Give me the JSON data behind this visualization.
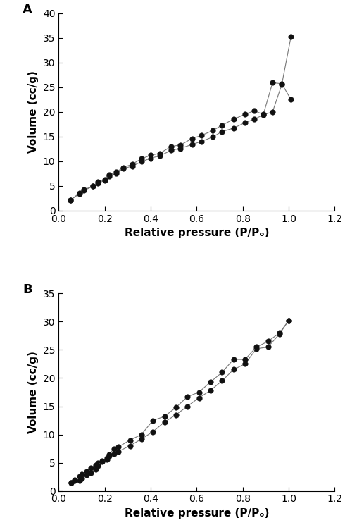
{
  "panel_A": {
    "label": "A",
    "adsorption_x": [
      0.05,
      0.09,
      0.11,
      0.15,
      0.17,
      0.2,
      0.22,
      0.25,
      0.28,
      0.32,
      0.36,
      0.4,
      0.44,
      0.49,
      0.53,
      0.58,
      0.62,
      0.67,
      0.71,
      0.76,
      0.81,
      0.85,
      0.89,
      0.93,
      0.97,
      1.01
    ],
    "adsorption_y": [
      2.1,
      3.4,
      4.1,
      4.9,
      5.5,
      6.1,
      7.0,
      7.5,
      8.5,
      9.0,
      9.9,
      10.6,
      11.1,
      12.2,
      12.6,
      13.4,
      14.0,
      14.9,
      16.0,
      16.7,
      17.8,
      18.5,
      19.4,
      20.0,
      25.5,
      35.2
    ],
    "desorption_x": [
      1.01,
      0.97,
      0.93,
      0.89,
      0.85,
      0.81,
      0.76,
      0.71,
      0.67,
      0.62,
      0.58,
      0.53,
      0.49,
      0.44,
      0.4,
      0.36,
      0.32,
      0.28,
      0.25,
      0.22,
      0.2,
      0.17,
      0.15,
      0.11,
      0.09,
      0.05
    ],
    "desorption_y": [
      22.5,
      25.7,
      25.9,
      19.5,
      20.2,
      19.5,
      18.5,
      17.3,
      16.2,
      15.2,
      14.6,
      13.3,
      13.0,
      11.6,
      11.2,
      10.5,
      9.4,
      8.7,
      7.8,
      7.2,
      6.3,
      5.8,
      5.0,
      4.2,
      3.5,
      2.1
    ],
    "xlim": [
      0.0,
      1.2
    ],
    "ylim": [
      0,
      40
    ],
    "xticks": [
      0.0,
      0.2,
      0.4,
      0.6,
      0.8,
      1.0,
      1.2
    ],
    "yticks": [
      0,
      5,
      10,
      15,
      20,
      25,
      30,
      35,
      40
    ],
    "xlabel": "Relative pressure (P/Pₒ)",
    "ylabel": "Volume (cc/g)"
  },
  "panel_B": {
    "label": "B",
    "adsorption_x": [
      0.055,
      0.07,
      0.09,
      0.1,
      0.12,
      0.14,
      0.16,
      0.17,
      0.19,
      0.21,
      0.22,
      0.24,
      0.26,
      0.31,
      0.36,
      0.41,
      0.46,
      0.51,
      0.56,
      0.61,
      0.66,
      0.71,
      0.76,
      0.81,
      0.86,
      0.91,
      0.96,
      1.0
    ],
    "adsorption_y": [
      1.5,
      2.0,
      2.6,
      3.0,
      3.5,
      4.1,
      4.6,
      4.9,
      5.3,
      5.8,
      6.2,
      6.6,
      7.0,
      8.0,
      9.2,
      10.5,
      12.2,
      13.5,
      15.0,
      16.5,
      17.8,
      19.5,
      21.5,
      22.5,
      25.2,
      25.5,
      27.8,
      30.2
    ],
    "desorption_x": [
      1.0,
      0.96,
      0.91,
      0.86,
      0.81,
      0.76,
      0.71,
      0.66,
      0.61,
      0.56,
      0.51,
      0.46,
      0.41,
      0.36,
      0.31,
      0.26,
      0.24,
      0.22,
      0.21,
      0.19,
      0.17,
      0.16,
      0.14,
      0.12,
      0.1,
      0.09,
      0.07,
      0.055
    ],
    "desorption_y": [
      30.2,
      28.0,
      26.5,
      25.5,
      23.3,
      23.3,
      21.0,
      19.3,
      17.5,
      16.7,
      14.8,
      13.2,
      12.5,
      10.0,
      9.0,
      7.8,
      7.5,
      6.5,
      5.6,
      5.2,
      4.5,
      3.8,
      3.2,
      2.8,
      2.2,
      1.8,
      1.8,
      1.5
    ],
    "xlim": [
      0.0,
      1.2
    ],
    "ylim": [
      0,
      35
    ],
    "xticks": [
      0.0,
      0.2,
      0.4,
      0.6,
      0.8,
      1.0,
      1.2
    ],
    "yticks": [
      0,
      5,
      10,
      15,
      20,
      25,
      30,
      35
    ],
    "xlabel": "Relative pressure (P/Pₒ)",
    "ylabel": "Volume (cc/g)"
  },
  "line_color": "#777777",
  "marker_color": "#111111",
  "marker_size": 5.5,
  "line_width": 0.8,
  "font_family": "DejaVu Sans",
  "label_fontsize": 11,
  "tick_fontsize": 10,
  "panel_label_fontsize": 13
}
